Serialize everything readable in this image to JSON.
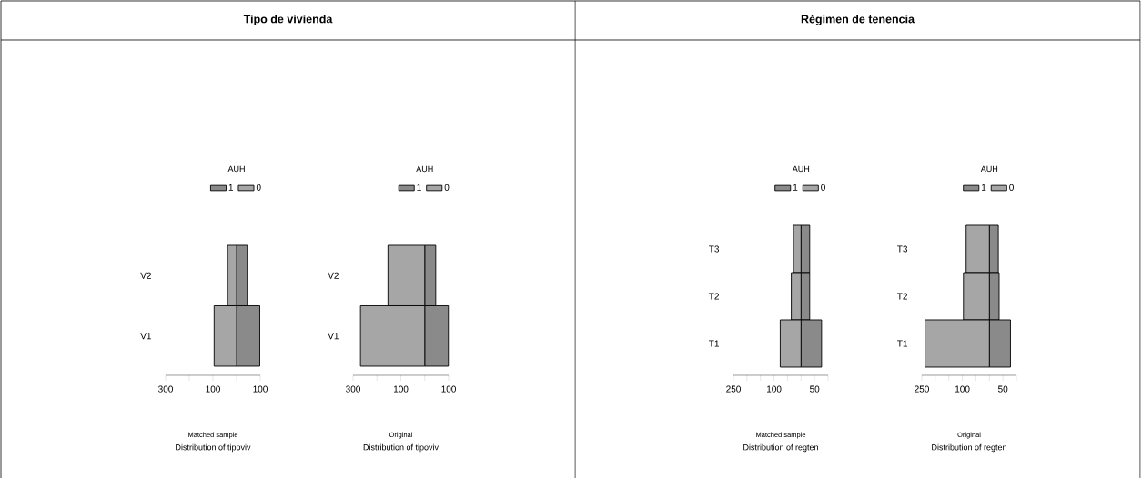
{
  "chart_data": [
    {
      "type": "bar",
      "orientation": "horizontal",
      "stacked": true,
      "title": "Tipo de vivienda",
      "categories": [
        "V2",
        "V1"
      ],
      "series": [
        {
          "name": "0",
          "color": "#a6a6a6",
          "values": [
            -38,
            -95
          ]
        },
        {
          "name": "1",
          "color": "#8a8a8a",
          "values": [
            45,
            98
          ]
        }
      ],
      "xlim": [
        -300,
        100
      ],
      "xticks": [
        {
          "value": -300,
          "label": "300"
        },
        {
          "value": -200,
          "label": null
        },
        {
          "value": -100,
          "label": "100"
        },
        {
          "value": 0,
          "label": null
        },
        {
          "value": 100,
          "label": "100"
        }
      ],
      "legend": "top",
      "legend_title": "AUH",
      "xlabel": "Distribution of tipoviv",
      "annotations": [
        "Matched  sample"
      ]
    },
    {
      "type": "bar",
      "orientation": "horizontal",
      "stacked": true,
      "categories": [
        "V2",
        "V1"
      ],
      "series": [
        {
          "name": "0",
          "color": "#a6a6a6",
          "values": [
            -154,
            -269
          ]
        },
        {
          "name": "1",
          "color": "#8a8a8a",
          "values": [
            46,
            99
          ]
        }
      ],
      "xlim": [
        -300,
        100
      ],
      "xticks": [
        {
          "value": -300,
          "label": "300"
        },
        {
          "value": -200,
          "label": null
        },
        {
          "value": -100,
          "label": "100"
        },
        {
          "value": 0,
          "label": null
        },
        {
          "value": 100,
          "label": "100"
        }
      ],
      "legend": "top",
      "legend_title": "AUH",
      "xlabel": "Distribution of tipoviv",
      "annotations": [
        "Original"
      ]
    },
    {
      "type": "bar",
      "orientation": "horizontal",
      "stacked": true,
      "title": "Régimen de tenencia",
      "categories": [
        "T3",
        "T2",
        "T1"
      ],
      "series": [
        {
          "name": "0",
          "color": "#a6a6a6",
          "values": [
            -28,
            -36,
            -77
          ]
        },
        {
          "name": "1",
          "color": "#8a8a8a",
          "values": [
            32,
            32,
            76
          ]
        }
      ],
      "xlim": [
        -250,
        100
      ],
      "xticks": [
        {
          "value": -250,
          "label": "250"
        },
        {
          "value": -200,
          "label": null
        },
        {
          "value": -150,
          "label": null
        },
        {
          "value": -100,
          "label": "100"
        },
        {
          "value": -50,
          "label": null
        },
        {
          "value": 0,
          "label": null
        },
        {
          "value": 50,
          "label": "50"
        },
        {
          "value": 100,
          "label": null
        }
      ],
      "legend": "top",
      "legend_title": "AUH",
      "xlabel": "Distribution of regten",
      "annotations": [
        "Matched  sample"
      ]
    },
    {
      "type": "bar",
      "orientation": "horizontal",
      "stacked": true,
      "categories": [
        "T3",
        "T2",
        "T1"
      ],
      "series": [
        {
          "name": "0",
          "color": "#a6a6a6",
          "values": [
            -86,
            -96,
            -238
          ]
        },
        {
          "name": "1",
          "color": "#8a8a8a",
          "values": [
            33,
            36,
            78
          ]
        }
      ],
      "xlim": [
        -250,
        100
      ],
      "xticks": [
        {
          "value": -250,
          "label": "250"
        },
        {
          "value": -200,
          "label": null
        },
        {
          "value": -150,
          "label": null
        },
        {
          "value": -100,
          "label": "100"
        },
        {
          "value": -50,
          "label": null
        },
        {
          "value": 0,
          "label": null
        },
        {
          "value": 50,
          "label": "50"
        },
        {
          "value": 100,
          "label": null
        }
      ],
      "legend": "top",
      "legend_title": "AUH",
      "xlabel": "Distribution of regten",
      "annotations": [
        "Original"
      ]
    }
  ]
}
